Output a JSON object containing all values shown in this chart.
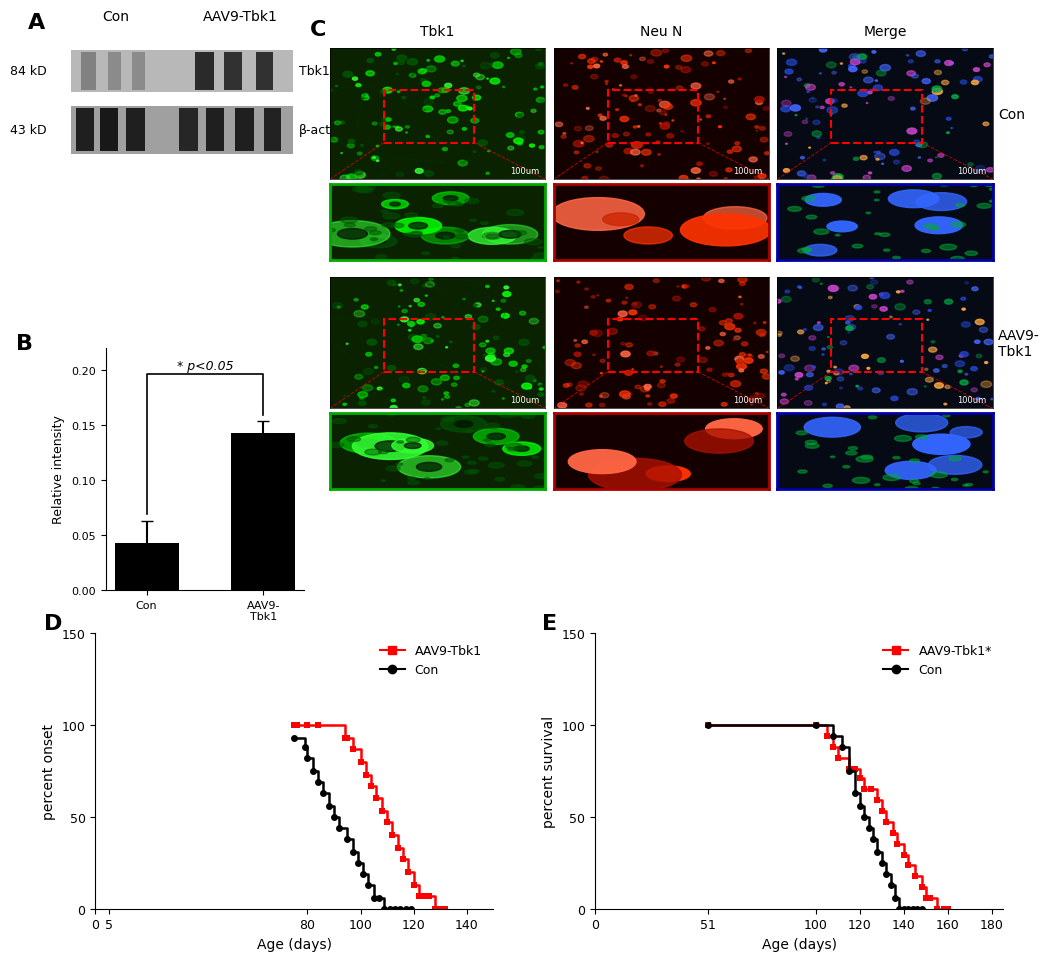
{
  "panel_labels": [
    "A",
    "B",
    "C",
    "D",
    "E"
  ],
  "bar_categories": [
    "Con",
    "AAV9-\nTbk1"
  ],
  "bar_values": [
    0.043,
    0.143
  ],
  "bar_errors": [
    0.02,
    0.01
  ],
  "bar_color": "#000000",
  "bar_ylabel": "Relative intensity",
  "bar_yticks": [
    0.0,
    0.05,
    0.1,
    0.15,
    0.2
  ],
  "bar_ylim": [
    0,
    0.22
  ],
  "significance_text": "* p<0.05",
  "wb_top_label": "84 kD",
  "wb_bottom_label": "43 kD",
  "wb_right_top": "Tbk1",
  "wb_right_bottom": "β-actin",
  "wb_group1": "Con",
  "wb_group2": "AAV9-Tbk1",
  "micro_col_labels": [
    "Tbk1",
    "Neu N",
    "Merge"
  ],
  "micro_row1_label": "Con",
  "micro_row2_label": "AAV9-\nTbk1",
  "D_title": "D",
  "D_xlabel": "Age (days)",
  "D_ylabel": "percent onset",
  "D_xlim": [
    0,
    150
  ],
  "D_ylim": [
    0,
    150
  ],
  "D_red_label": "AAV9-Tbk1",
  "D_black_label": "Con",
  "D_red_x": [
    75,
    76,
    80,
    84,
    94,
    95,
    97,
    100,
    102,
    104,
    106,
    108,
    110,
    112,
    114,
    116,
    118,
    120,
    122,
    124,
    126,
    128,
    130,
    132
  ],
  "D_red_y": [
    100,
    100,
    100,
    100,
    93,
    93,
    87,
    80,
    73,
    67,
    60,
    53,
    47,
    40,
    33,
    27,
    20,
    13,
    7,
    7,
    7,
    0,
    0,
    0
  ],
  "D_black_x": [
    75,
    79,
    80,
    82,
    84,
    86,
    88,
    90,
    92,
    95,
    97,
    99,
    101,
    103,
    105,
    107,
    109,
    111,
    113,
    115,
    117,
    119
  ],
  "D_black_y": [
    93,
    88,
    82,
    75,
    69,
    63,
    56,
    50,
    44,
    38,
    31,
    25,
    19,
    13,
    6,
    6,
    0,
    0,
    0,
    0,
    0,
    0
  ],
  "E_title": "E",
  "E_xlabel": "Age (days)",
  "E_ylabel": "percent survival",
  "E_xlim": [
    0,
    185
  ],
  "E_ylim": [
    0,
    150
  ],
  "E_red_label": "AAV9-Tbk1*",
  "E_black_label": "Con",
  "E_red_x": [
    51,
    100,
    105,
    108,
    110,
    115,
    118,
    120,
    122,
    125,
    128,
    130,
    132,
    135,
    137,
    140,
    142,
    145,
    148,
    150,
    152,
    155,
    158,
    160
  ],
  "E_red_y": [
    100,
    100,
    94,
    88,
    82,
    76,
    76,
    71,
    65,
    65,
    59,
    53,
    47,
    41,
    35,
    29,
    24,
    18,
    12,
    6,
    6,
    0,
    0,
    0
  ],
  "E_black_x": [
    51,
    100,
    108,
    112,
    115,
    118,
    120,
    122,
    124,
    126,
    128,
    130,
    132,
    134,
    136,
    138,
    140,
    142,
    144,
    146,
    148
  ],
  "E_black_y": [
    100,
    100,
    94,
    88,
    75,
    63,
    56,
    50,
    44,
    38,
    31,
    25,
    19,
    13,
    6,
    0,
    0,
    0,
    0,
    0,
    0
  ],
  "background_color": "#ffffff",
  "red_color": "#ff0000",
  "black_color": "#000000"
}
